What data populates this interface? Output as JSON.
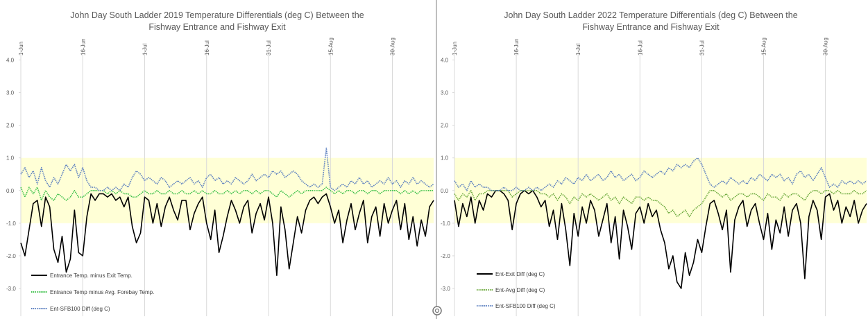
{
  "chart_data": [
    {
      "type": "line",
      "title": "John Day South Ladder 2019 Temperature Differentials (deg C) Between the Fishway Entrance and Fishway Exit",
      "x": [
        0,
        1,
        2,
        3,
        4,
        5,
        6,
        7,
        8,
        9,
        10,
        11,
        12,
        13,
        14,
        15,
        16,
        17,
        18,
        19,
        20,
        21,
        22,
        23,
        24,
        25,
        26,
        27,
        28,
        29,
        30,
        31,
        32,
        33,
        34,
        35,
        36,
        37,
        38,
        39,
        40,
        41,
        42,
        43,
        44,
        45,
        46,
        47,
        48,
        49,
        50,
        51,
        52,
        53,
        54,
        55,
        56,
        57,
        58,
        59,
        60,
        61,
        62,
        63,
        64,
        65,
        66,
        67,
        68,
        69,
        70,
        71,
        72,
        73,
        74,
        75,
        76,
        77,
        78,
        79,
        80,
        81,
        82,
        83,
        84,
        85,
        86,
        87,
        88,
        89,
        90,
        91,
        92,
        93,
        94,
        95,
        96,
        97,
        98,
        99,
        100
      ],
      "xlim": [
        0,
        100
      ],
      "xticks": [
        {
          "value": 0,
          "label": "1-Jun"
        },
        {
          "value": 15,
          "label": "16-Jun"
        },
        {
          "value": 30,
          "label": "1-Jul"
        },
        {
          "value": 45,
          "label": "16-Jul"
        },
        {
          "value": 60,
          "label": "31-Jul"
        },
        {
          "value": 75,
          "label": "15-Aug"
        },
        {
          "value": 90,
          "label": "30-Aug"
        }
      ],
      "ylim": [
        -3.85,
        4.35
      ],
      "yticks": [
        {
          "value": 4,
          "label": "4.0"
        },
        {
          "value": 3,
          "label": "3.0"
        },
        {
          "value": 2,
          "label": "2.0"
        },
        {
          "value": 1,
          "label": "1.0"
        },
        {
          "value": 0,
          "label": "0.0"
        },
        {
          "value": -1,
          "label": "-1.0"
        },
        {
          "value": -2,
          "label": "-2.0"
        },
        {
          "value": -3,
          "label": "-3.0"
        }
      ],
      "grid": "x",
      "shaded_band": {
        "from": -1,
        "to": 1,
        "color": "#ffffd6"
      },
      "legend": "lower left",
      "series": [
        {
          "name": "Entrance Temp. minus Exit Temp.",
          "color": "#000000",
          "dash": "solid",
          "values": [
            -1.6,
            -2.0,
            -1.2,
            -0.4,
            -0.3,
            -1.1,
            -0.2,
            -0.5,
            -1.8,
            -2.2,
            -1.4,
            -2.5,
            -2.1,
            -0.6,
            -1.9,
            -2.0,
            -0.8,
            -0.1,
            -0.3,
            -0.1,
            -0.1,
            -0.2,
            -0.1,
            -0.3,
            -0.2,
            -0.5,
            -0.2,
            -1.1,
            -1.6,
            -1.3,
            -0.2,
            -0.3,
            -1.0,
            -0.4,
            -1.1,
            -0.5,
            -0.2,
            -0.6,
            -0.9,
            -0.3,
            -0.3,
            -1.2,
            -0.7,
            -0.4,
            -0.2,
            -1.0,
            -1.5,
            -0.6,
            -1.9,
            -1.4,
            -0.8,
            -0.3,
            -0.6,
            -1.0,
            -0.5,
            -0.3,
            -1.3,
            -0.7,
            -0.4,
            -0.9,
            -0.2,
            -1.0,
            -2.6,
            -0.5,
            -1.2,
            -2.4,
            -1.6,
            -0.8,
            -1.3,
            -0.6,
            -0.3,
            -0.2,
            -0.4,
            -0.2,
            -0.1,
            -0.5,
            -1.0,
            -0.6,
            -1.6,
            -0.9,
            -0.4,
            -1.2,
            -0.7,
            -0.3,
            -1.6,
            -0.8,
            -0.5,
            -1.4,
            -0.4,
            -1.0,
            -0.6,
            -0.3,
            -1.2,
            -0.4,
            -1.5,
            -0.8,
            -1.7,
            -0.9,
            -1.4,
            -0.5,
            -0.3
          ]
        },
        {
          "name": "Entrance Temp minus Avg. Forebay Temp.",
          "color": "#3cc04a",
          "dash": "dotted",
          "values": [
            0.1,
            -0.2,
            0.1,
            -0.1,
            0.1,
            -0.3,
            0.0,
            -0.2,
            -0.3,
            -0.1,
            -0.2,
            -0.3,
            -0.2,
            0.0,
            -0.2,
            -0.2,
            -0.1,
            0.0,
            0.0,
            0.0,
            0.0,
            -0.1,
            0.0,
            -0.1,
            0.0,
            -0.1,
            -0.1,
            -0.2,
            -0.2,
            -0.1,
            0.0,
            -0.1,
            -0.1,
            0.0,
            -0.1,
            -0.1,
            0.0,
            -0.1,
            -0.1,
            0.0,
            -0.1,
            -0.1,
            0.0,
            -0.1,
            0.0,
            -0.1,
            -0.1,
            0.0,
            -0.1,
            -0.1,
            0.0,
            -0.1,
            0.0,
            -0.1,
            0.0,
            0.0,
            -0.1,
            0.0,
            -0.1,
            0.0,
            0.0,
            -0.1,
            -0.2,
            0.0,
            -0.1,
            -0.2,
            -0.1,
            0.0,
            -0.1,
            0.0,
            0.0,
            0.0,
            0.0,
            0.0,
            0.1,
            0.0,
            -0.1,
            0.0,
            -0.1,
            0.0,
            0.0,
            -0.1,
            0.0,
            0.0,
            -0.1,
            0.0,
            0.0,
            -0.1,
            0.0,
            0.0,
            0.0,
            0.0,
            -0.1,
            0.0,
            -0.1,
            0.0,
            -0.1,
            0.0,
            0.0,
            0.0,
            0.0
          ]
        },
        {
          "name": "Ent-SFB100 Diff (deg C)",
          "color": "#5b7fc0",
          "dash": "dotted",
          "values": [
            0.5,
            0.7,
            0.4,
            0.6,
            0.2,
            0.7,
            0.3,
            0.1,
            0.4,
            0.2,
            0.5,
            0.8,
            0.6,
            0.8,
            0.4,
            0.7,
            0.3,
            0.1,
            0.1,
            0.0,
            0.0,
            0.1,
            0.0,
            0.1,
            0.0,
            0.2,
            0.1,
            0.4,
            0.6,
            0.5,
            0.3,
            0.4,
            0.3,
            0.2,
            0.4,
            0.3,
            0.1,
            0.2,
            0.3,
            0.2,
            0.3,
            0.4,
            0.2,
            0.3,
            0.1,
            0.4,
            0.5,
            0.3,
            0.4,
            0.2,
            0.3,
            0.2,
            0.4,
            0.3,
            0.2,
            0.3,
            0.5,
            0.3,
            0.4,
            0.5,
            0.4,
            0.6,
            0.5,
            0.6,
            0.4,
            0.5,
            0.6,
            0.5,
            0.3,
            0.2,
            0.1,
            0.2,
            0.1,
            0.2,
            1.3,
            0.1,
            0.0,
            0.1,
            0.2,
            0.1,
            0.3,
            0.2,
            0.4,
            0.2,
            0.3,
            0.1,
            0.2,
            0.3,
            0.2,
            0.4,
            0.2,
            0.3,
            0.1,
            0.3,
            0.2,
            0.4,
            0.2,
            0.3,
            0.2,
            0.1,
            0.2
          ]
        }
      ]
    },
    {
      "type": "line",
      "title": "John Day South Ladder 2022 Temperature Differentials (deg C) Between the Fishway Entrance and Fishway Exit",
      "x": [
        0,
        1,
        2,
        3,
        4,
        5,
        6,
        7,
        8,
        9,
        10,
        11,
        12,
        13,
        14,
        15,
        16,
        17,
        18,
        19,
        20,
        21,
        22,
        23,
        24,
        25,
        26,
        27,
        28,
        29,
        30,
        31,
        32,
        33,
        34,
        35,
        36,
        37,
        38,
        39,
        40,
        41,
        42,
        43,
        44,
        45,
        46,
        47,
        48,
        49,
        50,
        51,
        52,
        53,
        54,
        55,
        56,
        57,
        58,
        59,
        60,
        61,
        62,
        63,
        64,
        65,
        66,
        67,
        68,
        69,
        70,
        71,
        72,
        73,
        74,
        75,
        76,
        77,
        78,
        79,
        80,
        81,
        82,
        83,
        84,
        85,
        86,
        87,
        88,
        89,
        90,
        91,
        92,
        93,
        94,
        95,
        96,
        97,
        98,
        99,
        100
      ],
      "xlim": [
        0,
        100
      ],
      "xticks": [
        {
          "value": 0,
          "label": "1-Jun"
        },
        {
          "value": 15,
          "label": "16-Jun"
        },
        {
          "value": 30,
          "label": "1-Jul"
        },
        {
          "value": 45,
          "label": "16-Jul"
        },
        {
          "value": 60,
          "label": "31-Jul"
        },
        {
          "value": 75,
          "label": "15-Aug"
        },
        {
          "value": 90,
          "label": "30-Aug"
        }
      ],
      "ylim": [
        -3.85,
        4.35
      ],
      "yticks": [
        {
          "value": 4,
          "label": "4.0"
        },
        {
          "value": 3,
          "label": "3.0"
        },
        {
          "value": 2,
          "label": "2.0"
        },
        {
          "value": 1,
          "label": "1.0"
        },
        {
          "value": 0,
          "label": "0.0"
        },
        {
          "value": -1,
          "label": "-1.0"
        },
        {
          "value": -2,
          "label": "-2.0"
        },
        {
          "value": -3,
          "label": "-3.0"
        }
      ],
      "grid": "x",
      "shaded_band": {
        "from": -1,
        "to": 1,
        "color": "#ffffd6"
      },
      "legend": "lower left",
      "series": [
        {
          "name": "Ent-Exit Diff (deg C)",
          "color": "#000000",
          "dash": "solid",
          "values": [
            -0.3,
            -1.1,
            -0.4,
            -0.8,
            -0.2,
            -1.0,
            -0.3,
            -0.6,
            -0.1,
            -0.2,
            0.0,
            0.0,
            -0.1,
            -0.3,
            -1.2,
            -0.4,
            -0.1,
            0.0,
            -0.1,
            0.0,
            -0.2,
            -0.5,
            -0.3,
            -1.1,
            -0.6,
            -1.5,
            -0.4,
            -1.2,
            -2.3,
            -0.7,
            -1.4,
            -0.5,
            -1.0,
            -0.3,
            -0.6,
            -1.4,
            -0.9,
            -0.4,
            -1.6,
            -0.8,
            -2.1,
            -0.6,
            -1.1,
            -1.8,
            -0.7,
            -0.5,
            -1.0,
            -0.4,
            -0.8,
            -0.6,
            -1.2,
            -1.6,
            -2.4,
            -2.0,
            -2.8,
            -3.0,
            -1.9,
            -2.6,
            -2.2,
            -1.5,
            -1.9,
            -1.1,
            -0.4,
            -0.3,
            -0.7,
            -1.2,
            -0.6,
            -2.5,
            -0.9,
            -0.5,
            -0.3,
            -1.1,
            -0.6,
            -0.4,
            -1.0,
            -1.5,
            -0.7,
            -1.8,
            -0.9,
            -1.3,
            -0.5,
            -1.4,
            -0.6,
            -0.4,
            -1.0,
            -2.7,
            -0.8,
            -0.3,
            -0.6,
            -1.5,
            -0.2,
            -0.1,
            -0.6,
            -0.3,
            -1.0,
            -0.5,
            -0.8,
            -0.3,
            -1.0,
            -0.6,
            -0.4
          ]
        },
        {
          "name": "Ent-Avg Diff (deg C)",
          "color": "#6aa83a",
          "dash": "dotted",
          "values": [
            -0.1,
            -0.3,
            -0.1,
            -0.2,
            0.0,
            -0.3,
            -0.1,
            -0.1,
            0.0,
            0.0,
            0.0,
            0.0,
            0.0,
            0.0,
            -0.2,
            -0.1,
            0.0,
            0.0,
            0.0,
            0.0,
            0.0,
            -0.1,
            -0.1,
            -0.2,
            -0.1,
            -0.3,
            -0.1,
            -0.2,
            -0.4,
            -0.2,
            -0.3,
            -0.1,
            -0.2,
            -0.1,
            -0.2,
            -0.3,
            -0.2,
            -0.1,
            -0.3,
            -0.2,
            -0.4,
            -0.2,
            -0.3,
            -0.4,
            -0.2,
            -0.2,
            -0.3,
            -0.2,
            -0.3,
            -0.3,
            -0.4,
            -0.5,
            -0.7,
            -0.6,
            -0.8,
            -0.7,
            -0.6,
            -0.8,
            -0.6,
            -0.5,
            -0.4,
            -0.2,
            0.0,
            0.0,
            -0.1,
            -0.2,
            -0.1,
            -0.3,
            -0.2,
            -0.1,
            -0.1,
            -0.2,
            -0.1,
            -0.1,
            -0.2,
            -0.3,
            -0.1,
            -0.2,
            -0.2,
            -0.3,
            -0.1,
            -0.2,
            -0.1,
            -0.1,
            -0.2,
            -0.3,
            -0.1,
            0.0,
            0.0,
            -0.1,
            0.0,
            0.0,
            -0.1,
            0.0,
            -0.1,
            -0.1,
            -0.1,
            0.0,
            -0.1,
            -0.1,
            0.0
          ]
        },
        {
          "name": "Ent-SFB100 Diff (deg C)",
          "color": "#5b7fc0",
          "dash": "dotted",
          "values": [
            0.3,
            0.1,
            0.2,
            0.0,
            0.3,
            0.1,
            0.2,
            0.1,
            0.1,
            0.0,
            0.0,
            0.0,
            0.1,
            0.0,
            0.0,
            0.1,
            0.0,
            0.0,
            0.1,
            0.0,
            0.1,
            0.0,
            0.1,
            0.2,
            0.1,
            0.3,
            0.2,
            0.4,
            0.3,
            0.2,
            0.4,
            0.3,
            0.5,
            0.3,
            0.4,
            0.5,
            0.3,
            0.4,
            0.6,
            0.4,
            0.5,
            0.3,
            0.4,
            0.5,
            0.3,
            0.4,
            0.6,
            0.5,
            0.4,
            0.5,
            0.6,
            0.5,
            0.7,
            0.6,
            0.8,
            0.7,
            0.8,
            0.7,
            0.9,
            1.0,
            0.8,
            0.5,
            0.2,
            0.1,
            0.2,
            0.3,
            0.2,
            0.4,
            0.3,
            0.2,
            0.3,
            0.2,
            0.4,
            0.3,
            0.5,
            0.4,
            0.3,
            0.5,
            0.4,
            0.5,
            0.3,
            0.4,
            0.2,
            0.5,
            0.6,
            0.4,
            0.5,
            0.3,
            0.5,
            0.7,
            0.4,
            0.1,
            0.2,
            0.1,
            0.3,
            0.2,
            0.3,
            0.2,
            0.3,
            0.2,
            0.3
          ]
        }
      ]
    }
  ]
}
